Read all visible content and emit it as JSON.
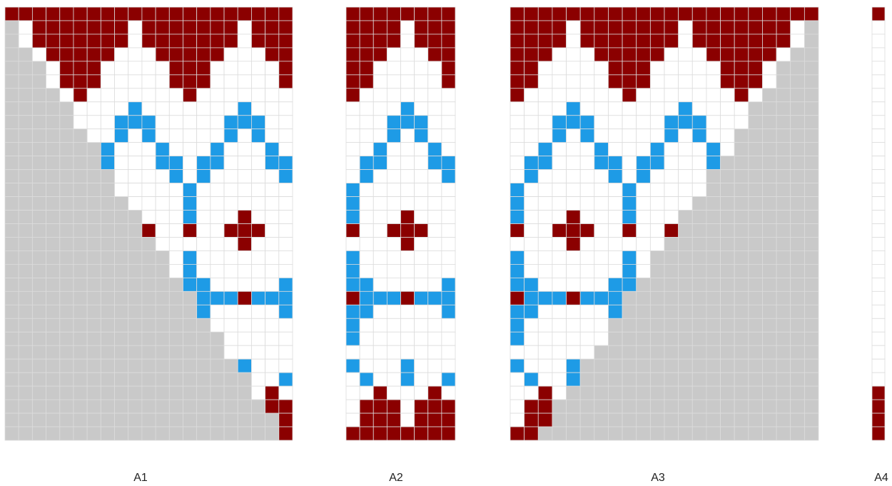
{
  "panels": [
    {
      "label": "A1"
    },
    {
      "label": "A2"
    },
    {
      "label": "A3"
    },
    {
      "label": "A4"
    }
  ]
}
